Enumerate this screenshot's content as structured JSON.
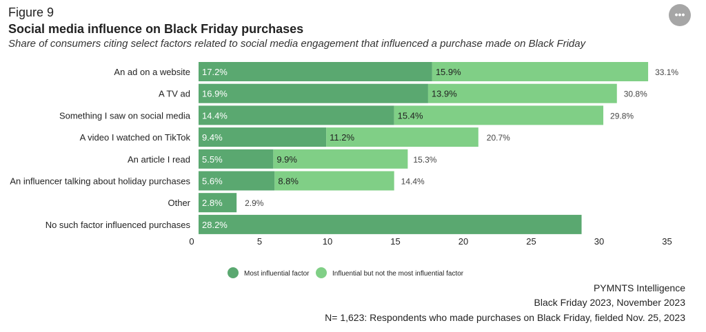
{
  "header": {
    "figure_label": "Figure 9",
    "title": "Social media influence on Black Friday purchases",
    "subtitle": "Share of consumers citing select factors related to social media engagement that influenced a purchase made on Black Friday",
    "menu_label": "•••"
  },
  "colors": {
    "most": "#5aa870",
    "influential": "#80cf86",
    "text_dark": "#222222",
    "text_light": "#ffffff",
    "axis_line": "#888888"
  },
  "chart_data": {
    "type": "bar",
    "orientation": "horizontal",
    "stacked": true,
    "categories": [
      "An ad on a website",
      "A TV ad",
      "Something I saw on social media",
      "A video I watched on TikTok",
      "An article I read",
      "An influencer talking about holiday purchases",
      "Other",
      "No such factor influenced purchases"
    ],
    "series": [
      {
        "name": "Most influential factor",
        "values": [
          17.2,
          16.9,
          14.4,
          9.4,
          5.5,
          5.6,
          2.8,
          28.2
        ],
        "labels": [
          "17.2%",
          "16.9%",
          "14.4%",
          "9.4%",
          "5.5%",
          "5.6%",
          "2.8%",
          "28.2%"
        ]
      },
      {
        "name": "Influential but not the most influential factor",
        "values": [
          15.9,
          13.9,
          15.4,
          11.2,
          9.9,
          8.8,
          0,
          0
        ],
        "labels": [
          "15.9%",
          "13.9%",
          "15.4%",
          "11.2%",
          "9.9%",
          "8.8%",
          "",
          ""
        ]
      }
    ],
    "totals": [
      33.1,
      30.8,
      29.8,
      20.7,
      15.3,
      14.4,
      2.9,
      null
    ],
    "total_labels": [
      "33.1%",
      "30.8%",
      "29.8%",
      "20.7%",
      "15.3%",
      "14.4%",
      "2.9%",
      ""
    ],
    "xlim": [
      0,
      35
    ],
    "xticks": [
      0,
      5,
      10,
      15,
      20,
      25,
      30,
      35
    ],
    "xlabel": "",
    "ylabel": "",
    "legend": [
      "Most influential factor",
      "Influential but not the most influential factor"
    ],
    "legend_position": "bottom-center"
  },
  "source": {
    "line1": "PYMNTS Intelligence",
    "line2": "Black Friday 2023, November 2023",
    "line3": "N= 1,623: Respondents who made purchases on Black Friday, fielded Nov. 25, 2023"
  }
}
